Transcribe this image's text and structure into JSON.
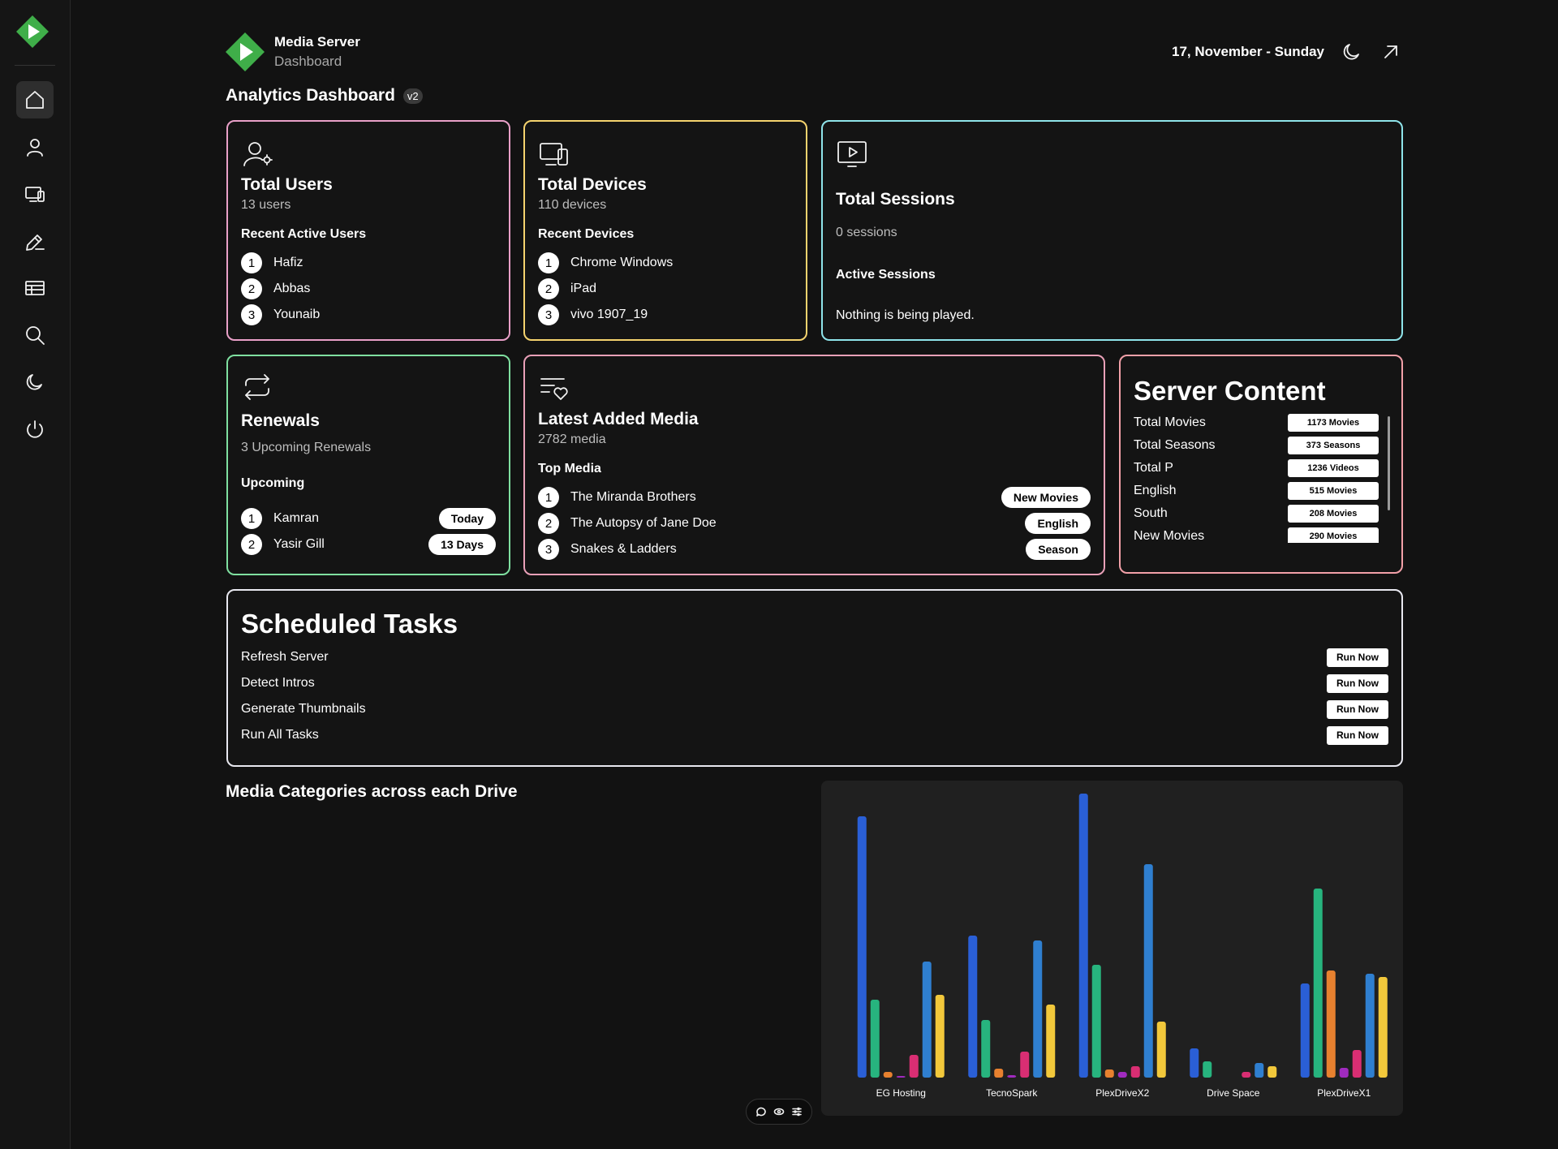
{
  "header": {
    "brand_title": "Media Server",
    "brand_subtitle": "Dashboard",
    "date": "17, November - Sunday",
    "page_title": "Analytics Dashboard",
    "version_badge": "v2"
  },
  "sidebar": {
    "items": [
      {
        "icon": "home-icon",
        "active": true
      },
      {
        "icon": "user-icon"
      },
      {
        "icon": "devices-icon"
      },
      {
        "icon": "edit-icon"
      },
      {
        "icon": "table-icon"
      },
      {
        "icon": "search-icon"
      },
      {
        "icon": "moon-icon"
      },
      {
        "icon": "power-icon"
      }
    ]
  },
  "users_card": {
    "title": "Total Users",
    "subtitle": "13 users",
    "section": "Recent Active Users",
    "items": [
      "Hafiz",
      "Abbas",
      "Younaib"
    ]
  },
  "devices_card": {
    "title": "Total Devices",
    "subtitle": "110 devices",
    "section": "Recent Devices",
    "items": [
      "Chrome Windows",
      "iPad",
      "vivo 1907_19"
    ]
  },
  "sessions_card": {
    "title": "Total Sessions",
    "subtitle": "0 sessions",
    "section": "Active Sessions",
    "empty_text": "Nothing is being played."
  },
  "renewals_card": {
    "title": "Renewals",
    "subtitle": "3 Upcoming Renewals",
    "section": "Upcoming",
    "items": [
      {
        "name": "Kamran",
        "when": "Today"
      },
      {
        "name": "Yasir Gill",
        "when": "13 Days"
      }
    ]
  },
  "media_card": {
    "title": "Latest Added Media",
    "subtitle": "2782 media",
    "section": "Top Media",
    "items": [
      {
        "name": "The Miranda Brothers",
        "tag": "New Movies"
      },
      {
        "name": "The Autopsy of Jane Doe",
        "tag": "English"
      },
      {
        "name": "Snakes & Ladders",
        "tag": "Season"
      }
    ]
  },
  "server_content": {
    "title": "Server Content",
    "rows": [
      {
        "label": "Total Movies",
        "value": "1173 Movies"
      },
      {
        "label": "Total Seasons",
        "value": "373 Seasons"
      },
      {
        "label": "Total P",
        "value": "1236 Videos"
      },
      {
        "label": "English",
        "value": "515 Movies"
      },
      {
        "label": "South",
        "value": "208 Movies"
      },
      {
        "label": "New Movies",
        "value": "290 Movies"
      }
    ]
  },
  "scheduled_tasks": {
    "title": "Scheduled Tasks",
    "run_label": "Run Now",
    "tasks": [
      "Refresh Server",
      "Detect Intros",
      "Generate Thumbnails",
      "Run All Tasks"
    ]
  },
  "chart_section": {
    "heading": "Media Categories across each Drive"
  },
  "chart_data": {
    "type": "bar",
    "title": "Media Categories across each Drive",
    "xlabel": "",
    "ylabel": "",
    "ylim": [
      0,
      350
    ],
    "grid": false,
    "categories": [
      "EG Hosting",
      "TecnoSpark",
      "PlexDriveX2",
      "Drive Space",
      "PlexDriveX1"
    ],
    "series": [
      {
        "name": "Series 1",
        "color": "#2a5fd6",
        "values": [
          322,
          175,
          350,
          36,
          116
        ]
      },
      {
        "name": "Series 2",
        "color": "#27b47e",
        "values": [
          96,
          71,
          139,
          20,
          233
        ]
      },
      {
        "name": "Series 3",
        "color": "#e7812f",
        "values": [
          7,
          11,
          10,
          0,
          132
        ]
      },
      {
        "name": "Series 4",
        "color": "#a02bbf",
        "values": [
          2,
          3,
          7,
          0,
          12
        ]
      },
      {
        "name": "Series 5",
        "color": "#d92e73",
        "values": [
          28,
          32,
          14,
          7,
          34
        ]
      },
      {
        "name": "Series 6",
        "color": "#2f7fd0",
        "values": [
          143,
          169,
          263,
          18,
          128
        ]
      },
      {
        "name": "Series 7",
        "color": "#f2c83b",
        "values": [
          102,
          90,
          69,
          14,
          124
        ]
      }
    ]
  },
  "colors": {
    "users_border": "#e9a0c8",
    "devices_border": "#f5d36e",
    "sessions_border": "#8fe4ea",
    "renewals_border": "#7fe0a0",
    "media_border": "#e9a0b8",
    "server_border": "#f2a0a8",
    "tasks_border": "#e8e8f0",
    "brand_green": "#3fae49"
  }
}
